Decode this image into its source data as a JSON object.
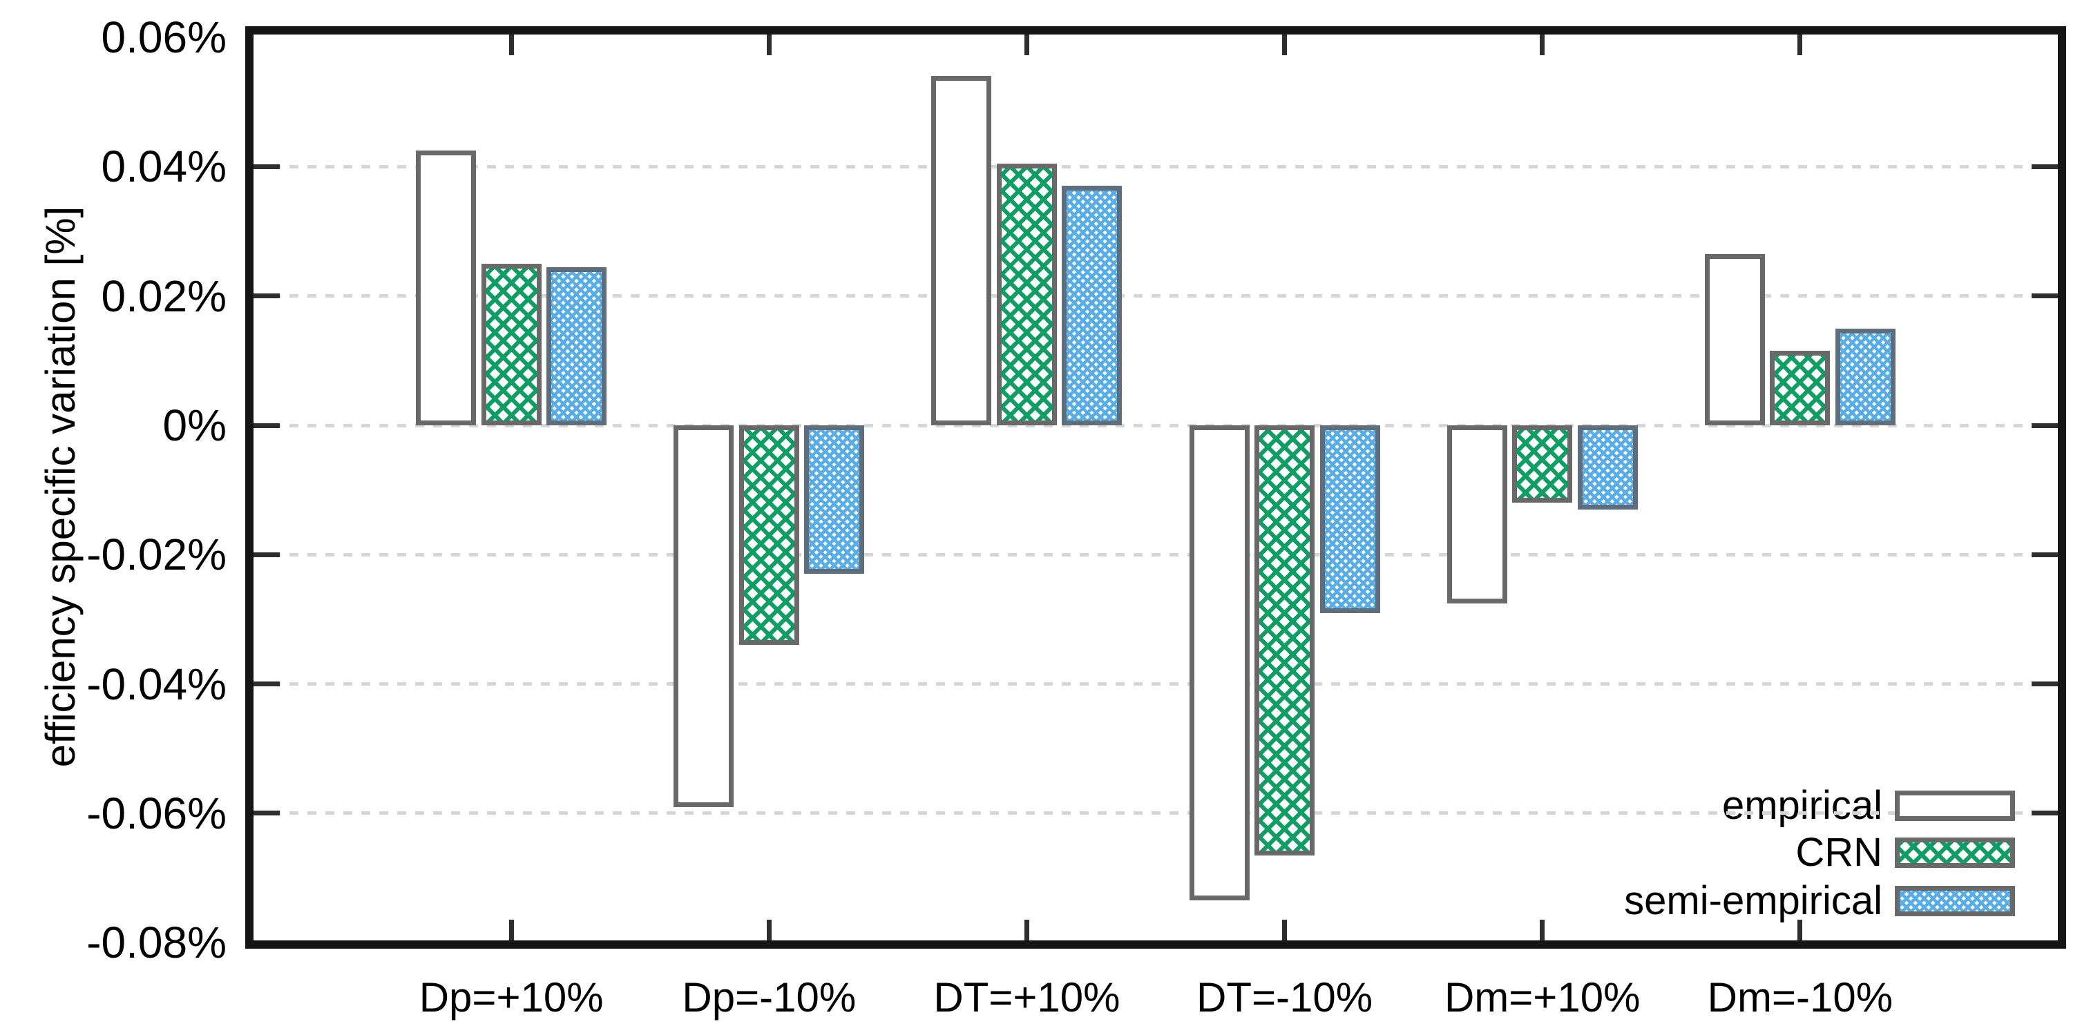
{
  "chart_data": {
    "type": "bar",
    "title": "",
    "ylabel": "efficiency specific variation [%]",
    "xlabel": "",
    "categories": [
      "Dp=+10%",
      "Dp=-10%",
      "DT=+10%",
      "DT=-10%",
      "Dm=+10%",
      "Dm=-10%"
    ],
    "series": [
      {
        "name": "empirical",
        "pattern": "empirical",
        "color": "#ffffff",
        "values": [
          0.0425,
          -0.059,
          0.054,
          -0.0735,
          -0.0275,
          0.0265
        ]
      },
      {
        "name": "CRN",
        "pattern": "crn",
        "color": "#0e9d62",
        "values": [
          0.025,
          -0.034,
          0.0405,
          -0.0665,
          -0.012,
          0.0115
        ]
      },
      {
        "name": "semi-empirical",
        "pattern": "semi",
        "color": "#58ade6",
        "values": [
          0.0245,
          -0.023,
          0.037,
          -0.029,
          -0.013,
          0.015
        ]
      }
    ],
    "ylim": [
      -0.08,
      0.06
    ],
    "y_ticks": [
      {
        "label": "0.06%",
        "value": 0.06
      },
      {
        "label": "0.04%",
        "value": 0.04
      },
      {
        "label": "0.02%",
        "value": 0.02
      },
      {
        "label": "0%",
        "value": 0
      },
      {
        "label": "-0.02%",
        "value": -0.02
      },
      {
        "label": "-0.04%",
        "value": -0.04
      },
      {
        "label": "-0.06%",
        "value": -0.06
      },
      {
        "label": "-0.08%",
        "value": -0.08
      }
    ],
    "grid_levels": [
      0.04,
      0.02,
      0,
      -0.02,
      -0.04,
      -0.06
    ],
    "grid": "dotted-horizontal",
    "legend_position": "bottom-right",
    "colors": {
      "frame": "#161616",
      "bar_border": "#696969",
      "crn_green": "#0e9d62",
      "semi_blue": "#58ade6",
      "gridline": "#d6d6d6",
      "tick": "#2e2e2e",
      "text": "#000000"
    }
  }
}
